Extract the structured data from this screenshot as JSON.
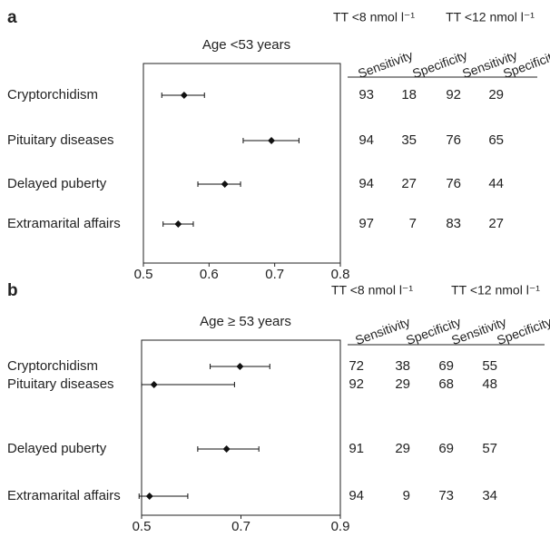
{
  "chart_data": [
    {
      "type": "forest",
      "title": "a",
      "subtitle": "Age <53 years",
      "categories": [
        "Cryptorchidism",
        "Pituitary diseases",
        "Delayed puberty",
        "Extramarital affairs"
      ],
      "values": [
        0.562,
        0.695,
        0.624,
        0.553
      ],
      "lower": [
        0.528,
        0.652,
        0.583,
        0.53
      ],
      "upper": [
        0.593,
        0.737,
        0.648,
        0.576
      ],
      "xlim": [
        0.5,
        0.8
      ],
      "xticks": [
        0.5,
        0.6,
        0.7,
        0.8
      ],
      "color": "#111111",
      "table": {
        "groups": [
          "TT <8 nmol l⁻¹",
          "TT <12 nmol l⁻¹"
        ],
        "columns": [
          "Sensitivity",
          "Specificity",
          "Sensitivity",
          "Specificity"
        ],
        "rows": [
          [
            93,
            18,
            92,
            29
          ],
          [
            94,
            35,
            76,
            65
          ],
          [
            94,
            27,
            76,
            44
          ],
          [
            97,
            7,
            83,
            27
          ]
        ]
      }
    },
    {
      "type": "forest",
      "title": "b",
      "subtitle": "Age ≥ 53 years",
      "categories": [
        "Cryptorchidism",
        "Pituitary diseases",
        "Delayed puberty",
        "Extramarital affairs"
      ],
      "values": [
        0.698,
        0.525,
        0.671,
        0.516
      ],
      "lower": [
        0.638,
        0.5,
        0.613,
        0.495
      ],
      "upper": [
        0.758,
        0.687,
        0.736,
        0.593
      ],
      "xlim": [
        0.5,
        0.9
      ],
      "xticks": [
        0.5,
        0.7,
        0.9
      ],
      "color": "#111111",
      "table": {
        "groups": [
          "TT <8 nmol l⁻¹",
          "TT <12 nmol l⁻¹"
        ],
        "columns": [
          "Sensitivity",
          "Specificity",
          "Sensitivity",
          "Specificity"
        ],
        "rows": [
          [
            72,
            38,
            69,
            55
          ],
          [
            92,
            29,
            68,
            48
          ],
          [
            91,
            29,
            69,
            57
          ],
          [
            94,
            9,
            73,
            34
          ]
        ]
      }
    }
  ]
}
